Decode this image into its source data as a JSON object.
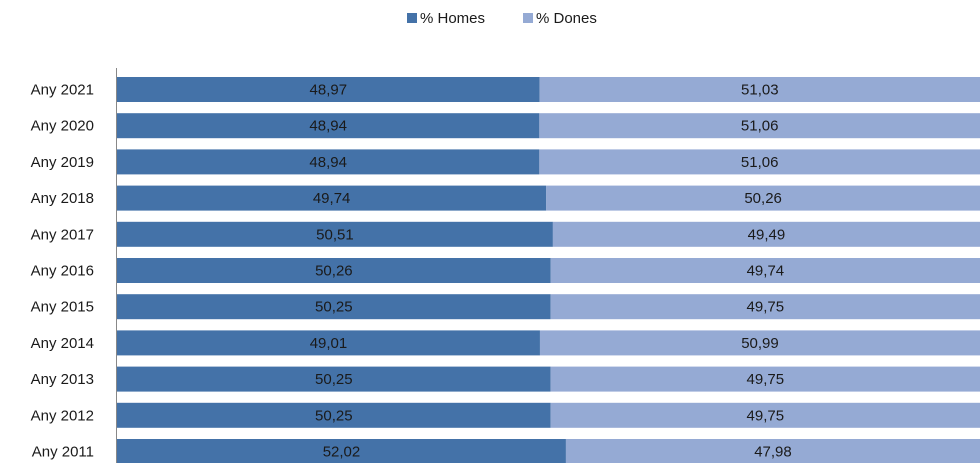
{
  "chart_data": {
    "type": "bar",
    "orientation": "horizontal",
    "stacked": true,
    "legend_position": "top-center",
    "grid": false,
    "categories": [
      "Any 2021",
      "Any 2020",
      "Any 2019",
      "Any 2018",
      "Any 2017",
      "Any 2016",
      "Any 2015",
      "Any 2014",
      "Any 2013",
      "Any 2012",
      "Any 2011"
    ],
    "series": [
      {
        "name": "% Homes",
        "color": "#4472a8",
        "values": [
          48.97,
          48.94,
          48.94,
          49.74,
          50.51,
          50.26,
          50.25,
          49.01,
          50.25,
          50.25,
          52.02
        ],
        "labels": [
          "48,97",
          "48,94",
          "48,94",
          "49,74",
          "50,51",
          "50,26",
          "50,25",
          "49,01",
          "50,25",
          "50,25",
          "52,02"
        ]
      },
      {
        "name": "% Dones",
        "color": "#95aad4",
        "values": [
          51.03,
          51.06,
          51.06,
          50.26,
          49.49,
          49.74,
          49.75,
          50.99,
          49.75,
          49.75,
          47.98
        ],
        "labels": [
          "51,03",
          "51,06",
          "51,06",
          "50,26",
          "49,49",
          "49,74",
          "49,75",
          "50,99",
          "49,75",
          "49,75",
          "47,98"
        ]
      }
    ],
    "xlim": [
      0,
      100
    ]
  }
}
